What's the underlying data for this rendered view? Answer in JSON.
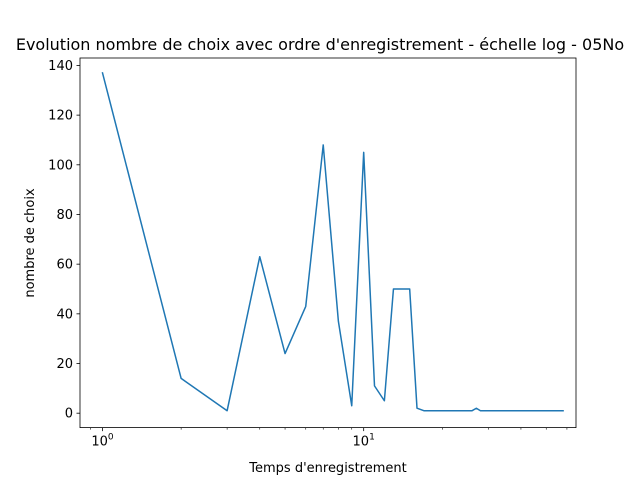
{
  "chart_data": {
    "type": "line",
    "title": "Evolution nombre de choix avec ordre d'enregistrement - échelle log - 05No",
    "xlabel": "Temps d'enregistrement",
    "ylabel": "nombre de choix",
    "xscale": "log",
    "xlim": [
      0.82,
      65
    ],
    "ylim": [
      -5.8,
      143
    ],
    "yticks": [
      0,
      20,
      40,
      60,
      80,
      100,
      120,
      140
    ],
    "xticks_major": [
      {
        "value": 1,
        "base": "10",
        "exp": "0"
      },
      {
        "value": 10,
        "base": "10",
        "exp": "1"
      }
    ],
    "grid": false,
    "line_color": "#1f77b4",
    "series": [
      {
        "x": [
          1,
          2,
          3,
          4,
          5,
          6,
          7,
          8,
          9,
          10,
          11,
          12,
          13,
          14,
          15,
          16,
          17,
          18,
          19,
          20,
          21,
          22,
          23,
          24,
          25,
          26,
          27,
          28,
          29,
          30,
          35,
          40,
          45,
          50,
          55,
          58
        ],
        "y": [
          137,
          14,
          1,
          63,
          24,
          43,
          108,
          37,
          3,
          105,
          11,
          5,
          50,
          50,
          50,
          2,
          1,
          1,
          1,
          1,
          1,
          1,
          1,
          1,
          1,
          1,
          2,
          1,
          1,
          1,
          1,
          1,
          1,
          1,
          1,
          1
        ]
      }
    ]
  }
}
